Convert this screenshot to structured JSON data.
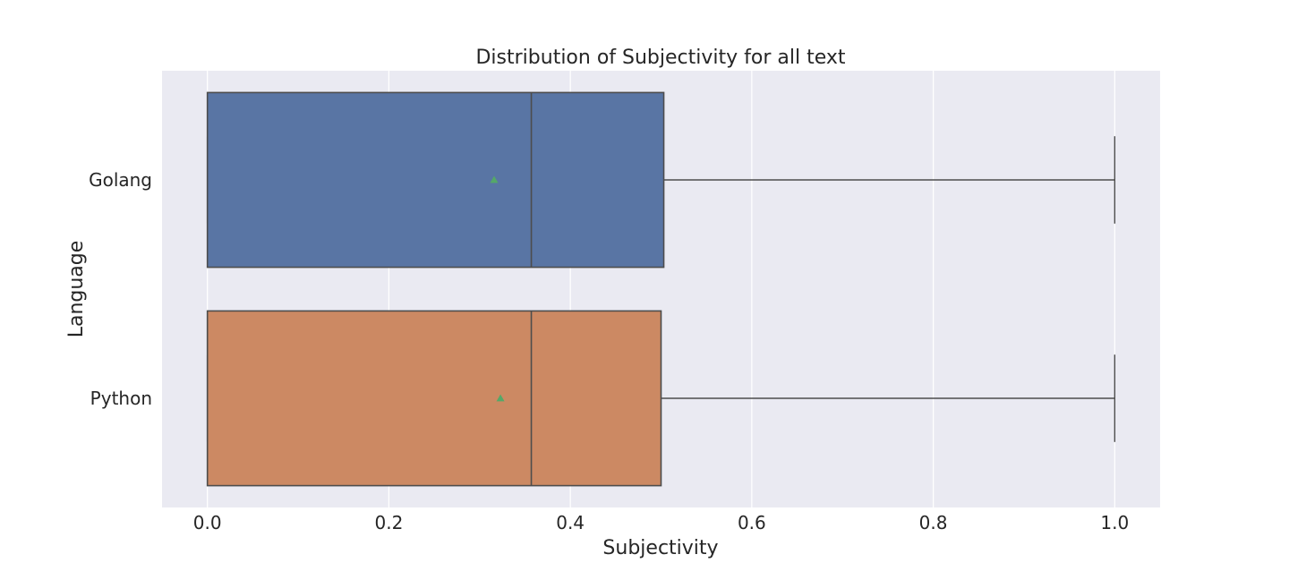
{
  "chart_data": {
    "type": "box",
    "orientation": "horizontal",
    "title": "Distribution of Subjectivity for all text",
    "xlabel": "Subjectivity",
    "ylabel": "Language",
    "xlim": [
      -0.05,
      1.05
    ],
    "xticks": [
      "0.0",
      "0.2",
      "0.4",
      "0.6",
      "0.8",
      "1.0"
    ],
    "grid": true,
    "show_means": true,
    "background": "#eaeaf2",
    "series": [
      {
        "name": "Golang",
        "color": "#5975a4",
        "min": 0.0,
        "q1": 0.0,
        "median": 0.357,
        "q3": 0.503,
        "max": 1.0,
        "mean": 0.316
      },
      {
        "name": "Python",
        "color": "#cc8963",
        "min": 0.0,
        "q1": 0.0,
        "median": 0.357,
        "q3": 0.5,
        "max": 1.0,
        "mean": 0.323
      }
    ]
  }
}
